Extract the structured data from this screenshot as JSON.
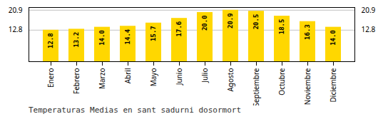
{
  "chart_data": {
    "type": "bar",
    "title": "Temperaturas Medias en sant sadurni dosormort",
    "categories": [
      "Enero",
      "Febrero",
      "Marzo",
      "Abril",
      "Mayo",
      "Junio",
      "Julio",
      "Agosto",
      "Septiembre",
      "Octubre",
      "Noviembre",
      "Diciembre"
    ],
    "values": [
      12.8,
      13.2,
      14.0,
      14.4,
      15.7,
      17.6,
      20.0,
      20.9,
      20.5,
      18.5,
      16.3,
      14.0
    ],
    "value_labels": [
      "12.8",
      "13.2",
      "14.0",
      "14.4",
      "15.7",
      "17.6",
      "20.0",
      "20.9",
      "20.5",
      "18.5",
      "16.3",
      "14.0"
    ],
    "data_labels": true,
    "color": "#FFD700",
    "ylim": [
      0,
      22.0
    ],
    "yticks": [
      12.8,
      20.9
    ],
    "y2lim": [
      0,
      22.0
    ],
    "y2ticks": [
      12.8,
      20.9
    ],
    "grid": true
  }
}
